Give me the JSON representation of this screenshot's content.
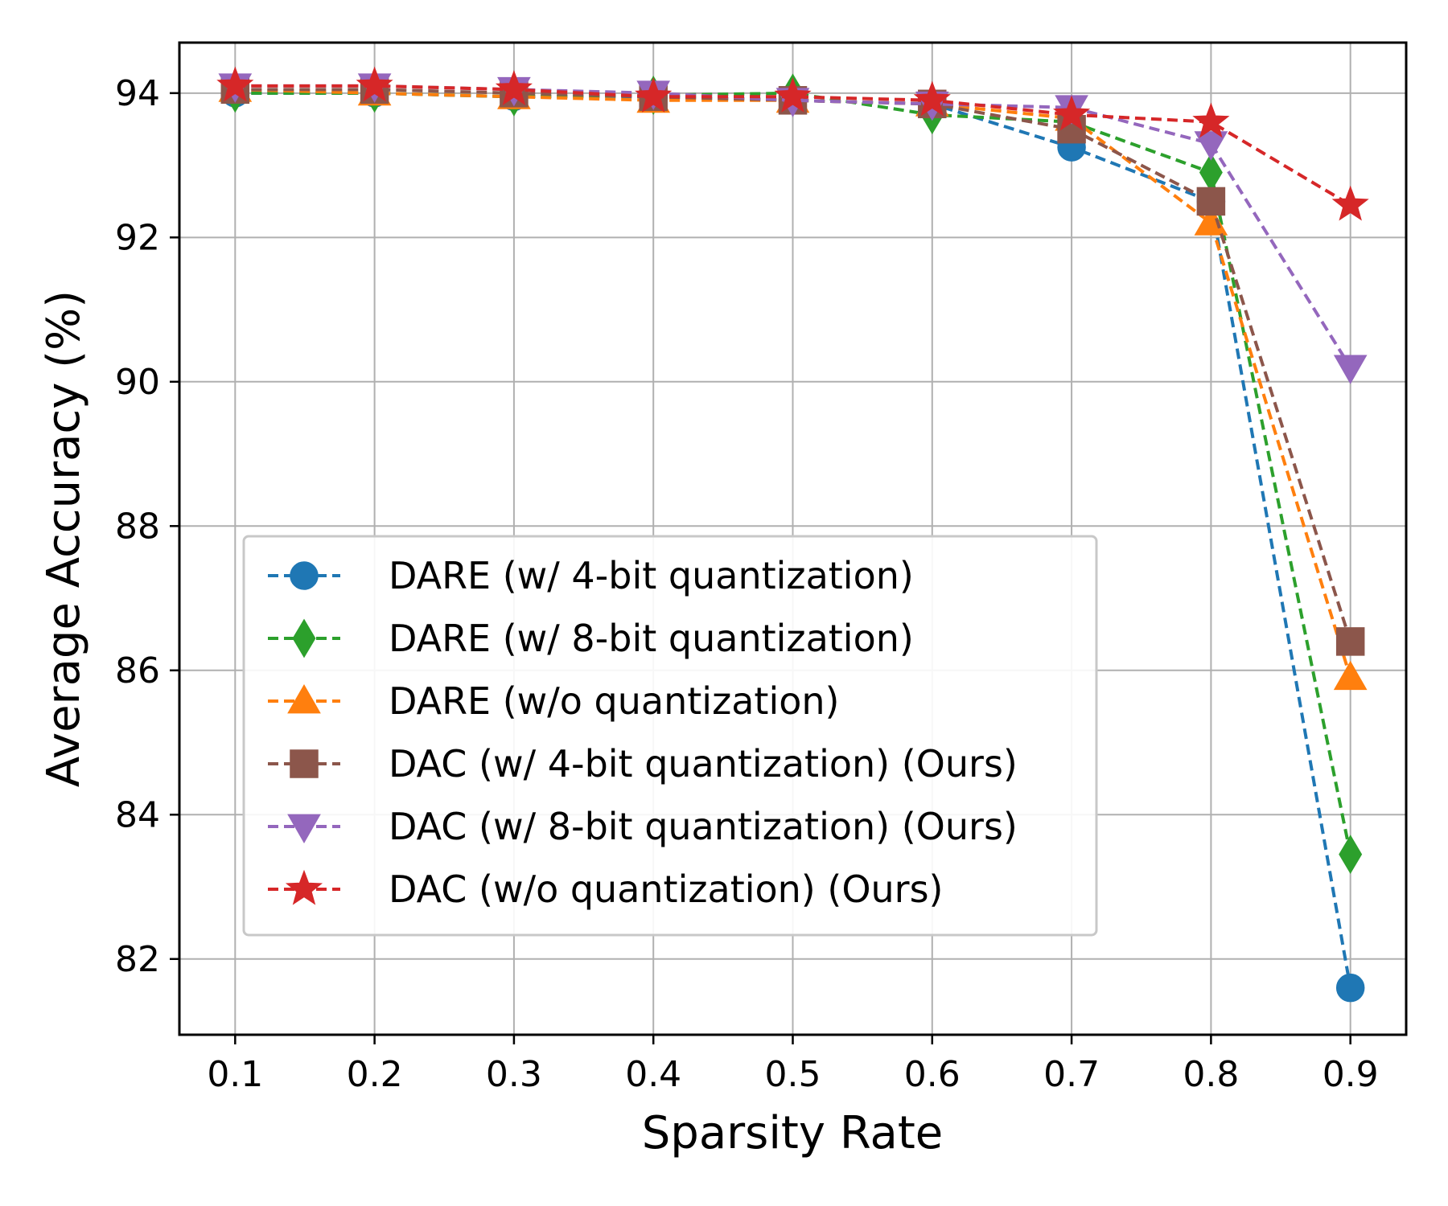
{
  "chart_data": {
    "type": "line",
    "title": "",
    "xlabel": "Sparsity Rate",
    "ylabel": "Average Accuracy (%)",
    "x": [
      0.1,
      0.2,
      0.3,
      0.4,
      0.5,
      0.6,
      0.7,
      0.8,
      0.9
    ],
    "x_tick_labels": [
      "0.1",
      "0.2",
      "0.3",
      "0.4",
      "0.5",
      "0.6",
      "0.7",
      "0.8",
      "0.9"
    ],
    "y_ticks": [
      82,
      84,
      86,
      88,
      90,
      92,
      94
    ],
    "y_tick_labels": [
      "82",
      "84",
      "86",
      "88",
      "90",
      "92",
      "94"
    ],
    "xlim": [
      0.06,
      0.94
    ],
    "ylim": [
      80.95,
      94.7
    ],
    "grid": true,
    "legend_position": "lower-left",
    "series": [
      {
        "name": "DARE (w/ 4-bit quantization)",
        "color": "#1f77b4",
        "marker": "circle",
        "values": [
          94.0,
          94.0,
          93.95,
          93.95,
          93.9,
          93.85,
          93.25,
          92.5,
          81.6
        ]
      },
      {
        "name": "DARE (w/ 8-bit quantization)",
        "color": "#2ca02c",
        "marker": "diamond",
        "values": [
          94.0,
          94.0,
          93.95,
          93.97,
          94.0,
          93.7,
          93.6,
          92.9,
          83.45
        ]
      },
      {
        "name": "DARE (w/o quantization)",
        "color": "#ff7f0e",
        "marker": "triangle-up",
        "values": [
          94.05,
          94.0,
          93.95,
          93.9,
          93.9,
          93.85,
          93.65,
          92.2,
          85.9
        ]
      },
      {
        "name": "DAC (w/ 4-bit quantization) (Ours)",
        "color": "#8c564b",
        "marker": "square",
        "values": [
          94.05,
          94.05,
          94.0,
          93.95,
          93.9,
          93.85,
          93.5,
          92.5,
          86.4
        ]
      },
      {
        "name": "DAC (w/ 8-bit quantization) (Ours)",
        "color": "#9467bd",
        "marker": "triangle-down",
        "values": [
          94.1,
          94.1,
          94.05,
          94.0,
          93.9,
          93.85,
          93.8,
          93.3,
          90.2
        ]
      },
      {
        "name": "DAC (w/o quantization) (Ours)",
        "color": "#d62728",
        "marker": "star",
        "values": [
          94.1,
          94.1,
          94.05,
          93.95,
          93.95,
          93.9,
          93.7,
          93.6,
          92.45
        ]
      }
    ]
  }
}
